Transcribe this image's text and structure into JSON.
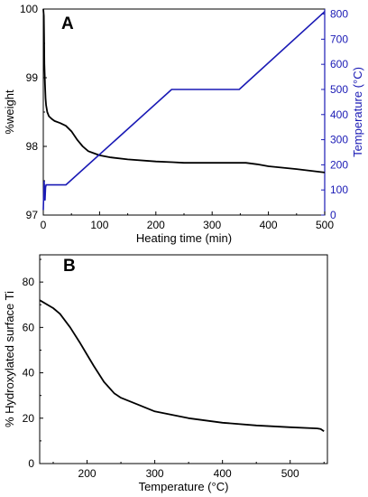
{
  "chart_data": [
    {
      "panel_label": "A",
      "type": "line",
      "xlabel": "Heating time (min)",
      "ylabel": "%weight",
      "y2label": "Temperature (°C)",
      "xlim": [
        0,
        500
      ],
      "ylim": [
        97,
        100
      ],
      "y2lim": [
        0,
        820
      ],
      "xticks": [
        0,
        100,
        200,
        300,
        400,
        500
      ],
      "yticks": [
        97,
        98,
        99,
        100
      ],
      "y2ticks": [
        0,
        100,
        200,
        300,
        400,
        500,
        600,
        700,
        800
      ],
      "grid": false,
      "colors": {
        "weight": "#000000",
        "temperature": "#1a1ab5",
        "y2axis": "#1a1ab5"
      },
      "series": [
        {
          "axis": "left",
          "x": [
            0,
            1,
            1.5,
            2,
            3,
            4,
            5,
            7,
            10,
            15,
            20,
            30,
            40,
            50,
            60,
            70,
            80,
            90,
            100,
            120,
            150,
            200,
            230,
            250,
            300,
            330,
            360,
            380,
            400,
            450,
            490,
            500
          ],
          "y": [
            100,
            99.9,
            99.6,
            99.2,
            98.9,
            98.7,
            98.6,
            98.5,
            98.44,
            98.4,
            98.37,
            98.34,
            98.3,
            98.22,
            98.1,
            98.0,
            97.93,
            97.9,
            97.87,
            97.84,
            97.81,
            97.78,
            97.77,
            97.76,
            97.76,
            97.76,
            97.76,
            97.74,
            97.71,
            97.67,
            97.63,
            97.62
          ]
        },
        {
          "axis": "right",
          "x": [
            0,
            1.5,
            3,
            4,
            5,
            40,
            228,
            348,
            500
          ],
          "y": [
            20,
            135,
            60,
            110,
            120,
            120,
            500,
            500,
            810
          ]
        }
      ]
    },
    {
      "panel_label": "B",
      "type": "line",
      "xlabel": "Temperature (°C)",
      "ylabel": "% Hydroxylated surface Ti",
      "xlim": [
        130,
        555
      ],
      "ylim": [
        0,
        92
      ],
      "xticks": [
        200,
        300,
        400,
        500
      ],
      "yticks": [
        0,
        20,
        40,
        60,
        80
      ],
      "grid": false,
      "colors": {
        "line": "#000000"
      },
      "series": [
        {
          "x": [
            130,
            150,
            160,
            175,
            190,
            200,
            210,
            225,
            240,
            250,
            275,
            300,
            350,
            400,
            450,
            500,
            540,
            545,
            550
          ],
          "y": [
            72,
            68.5,
            66,
            60,
            53,
            48,
            43,
            36,
            31,
            29,
            26,
            23,
            20,
            18,
            16.8,
            16,
            15.5,
            15.2,
            14.2
          ]
        }
      ]
    }
  ]
}
